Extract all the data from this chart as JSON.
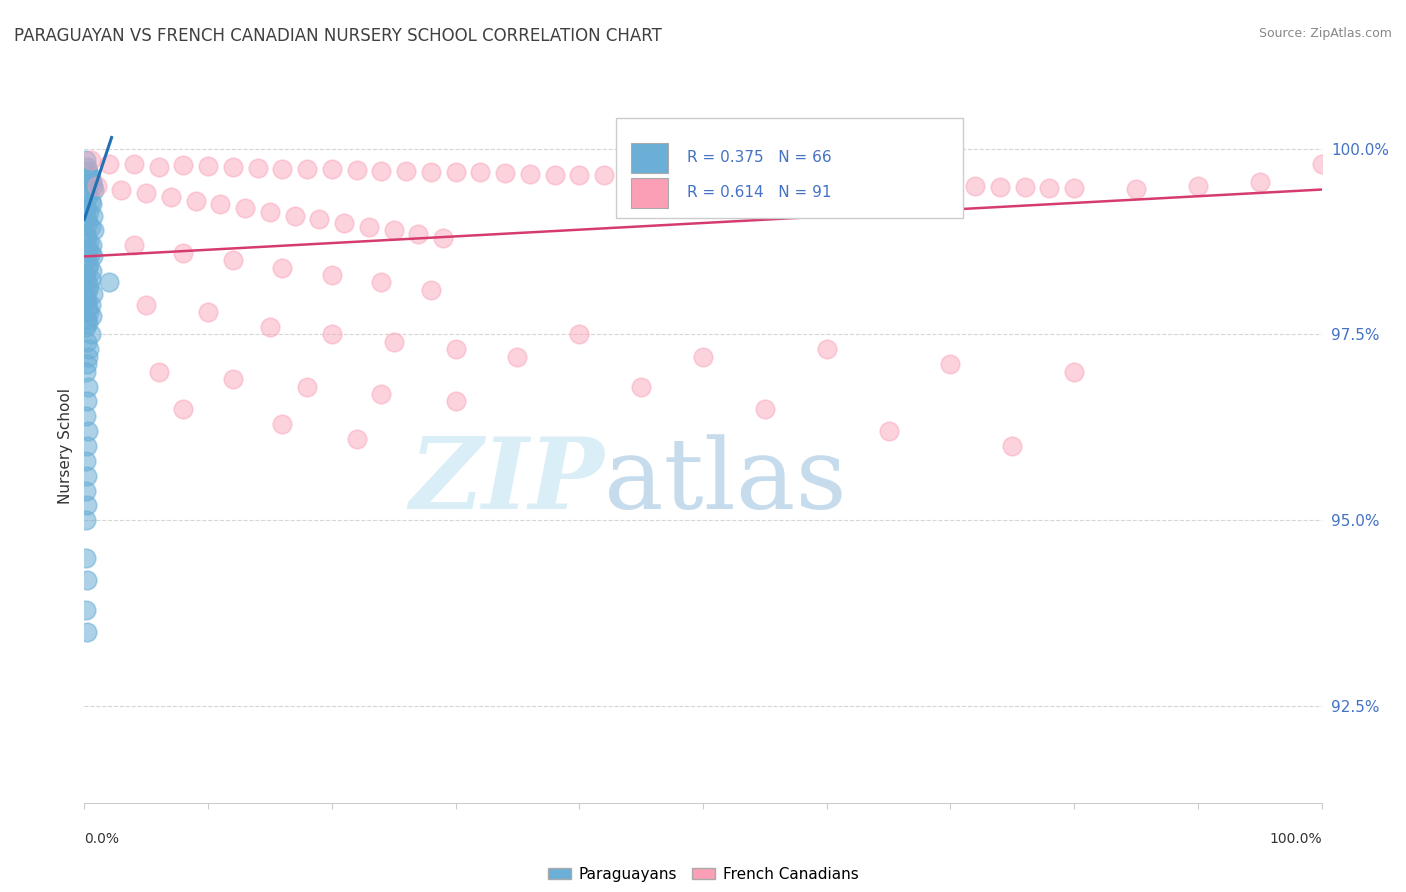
{
  "title": "PARAGUAYAN VS FRENCH CANADIAN NURSERY SCHOOL CORRELATION CHART",
  "source": "Source: ZipAtlas.com",
  "ylabel": "Nursery School",
  "legend_label1": "Paraguayans",
  "legend_label2": "French Canadians",
  "R1": 0.375,
  "N1": 66,
  "R2": 0.614,
  "N2": 91,
  "xlim": [
    0.0,
    100.0
  ],
  "ylim": [
    91.2,
    100.8
  ],
  "yticks": [
    92.5,
    95.0,
    97.5,
    100.0
  ],
  "ytick_labels": [
    "92.5%",
    "95.0%",
    "97.5%",
    "100.0%"
  ],
  "color_blue": "#6baed6",
  "color_pink": "#fa9fb5",
  "color_blue_line": "#2171b5",
  "color_pink_line": "#d63b6e",
  "background_color": "#ffffff",
  "blue_points": [
    [
      0.1,
      99.85
    ],
    [
      0.2,
      99.75
    ],
    [
      0.3,
      99.7
    ],
    [
      0.4,
      99.65
    ],
    [
      0.5,
      99.6
    ],
    [
      0.6,
      99.55
    ],
    [
      0.7,
      99.5
    ],
    [
      0.8,
      99.45
    ],
    [
      0.2,
      99.4
    ],
    [
      0.3,
      99.35
    ],
    [
      0.5,
      99.3
    ],
    [
      0.6,
      99.25
    ],
    [
      0.1,
      99.2
    ],
    [
      0.4,
      99.15
    ],
    [
      0.7,
      99.1
    ],
    [
      0.2,
      99.05
    ],
    [
      0.3,
      99.0
    ],
    [
      0.5,
      98.95
    ],
    [
      0.8,
      98.9
    ],
    [
      0.1,
      98.85
    ],
    [
      0.2,
      98.8
    ],
    [
      0.4,
      98.75
    ],
    [
      0.6,
      98.7
    ],
    [
      0.3,
      98.65
    ],
    [
      0.5,
      98.6
    ],
    [
      0.7,
      98.55
    ],
    [
      0.2,
      98.5
    ],
    [
      0.4,
      98.45
    ],
    [
      0.3,
      98.4
    ],
    [
      0.6,
      98.35
    ],
    [
      0.1,
      98.3
    ],
    [
      0.5,
      98.25
    ],
    [
      0.2,
      98.2
    ],
    [
      0.4,
      98.15
    ],
    [
      0.3,
      98.1
    ],
    [
      0.7,
      98.05
    ],
    [
      0.1,
      98.0
    ],
    [
      0.2,
      97.95
    ],
    [
      0.5,
      97.9
    ],
    [
      0.3,
      97.85
    ],
    [
      0.4,
      97.8
    ],
    [
      0.6,
      97.75
    ],
    [
      0.2,
      97.7
    ],
    [
      0.3,
      97.65
    ],
    [
      0.1,
      97.6
    ],
    [
      0.5,
      97.5
    ],
    [
      0.2,
      97.4
    ],
    [
      0.4,
      97.3
    ],
    [
      0.3,
      97.2
    ],
    [
      0.2,
      97.1
    ],
    [
      0.1,
      97.0
    ],
    [
      0.3,
      96.8
    ],
    [
      0.2,
      96.6
    ],
    [
      0.1,
      96.4
    ],
    [
      0.3,
      96.2
    ],
    [
      0.2,
      96.0
    ],
    [
      0.1,
      95.8
    ],
    [
      0.2,
      95.6
    ],
    [
      0.1,
      95.4
    ],
    [
      0.2,
      95.2
    ],
    [
      0.1,
      95.0
    ],
    [
      0.1,
      94.5
    ],
    [
      0.2,
      94.2
    ],
    [
      0.1,
      93.8
    ],
    [
      0.2,
      93.5
    ],
    [
      2.0,
      98.2
    ]
  ],
  "pink_points": [
    [
      0.5,
      99.85
    ],
    [
      2.0,
      99.8
    ],
    [
      4.0,
      99.8
    ],
    [
      6.0,
      99.75
    ],
    [
      8.0,
      99.78
    ],
    [
      10.0,
      99.77
    ],
    [
      12.0,
      99.75
    ],
    [
      14.0,
      99.74
    ],
    [
      16.0,
      99.73
    ],
    [
      18.0,
      99.72
    ],
    [
      20.0,
      99.72
    ],
    [
      22.0,
      99.71
    ],
    [
      24.0,
      99.7
    ],
    [
      26.0,
      99.7
    ],
    [
      28.0,
      99.69
    ],
    [
      30.0,
      99.68
    ],
    [
      32.0,
      99.68
    ],
    [
      34.0,
      99.67
    ],
    [
      36.0,
      99.66
    ],
    [
      38.0,
      99.65
    ],
    [
      40.0,
      99.65
    ],
    [
      42.0,
      99.64
    ],
    [
      44.0,
      99.63
    ],
    [
      46.0,
      99.62
    ],
    [
      48.0,
      99.61
    ],
    [
      50.0,
      99.6
    ],
    [
      52.0,
      99.6
    ],
    [
      54.0,
      99.59
    ],
    [
      56.0,
      99.58
    ],
    [
      58.0,
      99.57
    ],
    [
      60.0,
      99.56
    ],
    [
      62.0,
      99.55
    ],
    [
      64.0,
      99.54
    ],
    [
      66.0,
      99.53
    ],
    [
      68.0,
      99.52
    ],
    [
      70.0,
      99.51
    ],
    [
      72.0,
      99.5
    ],
    [
      74.0,
      99.49
    ],
    [
      76.0,
      99.48
    ],
    [
      78.0,
      99.47
    ],
    [
      80.0,
      99.47
    ],
    [
      85.0,
      99.46
    ],
    [
      90.0,
      99.5
    ],
    [
      95.0,
      99.55
    ],
    [
      100.0,
      99.8
    ],
    [
      1.0,
      99.5
    ],
    [
      3.0,
      99.45
    ],
    [
      5.0,
      99.4
    ],
    [
      7.0,
      99.35
    ],
    [
      9.0,
      99.3
    ],
    [
      11.0,
      99.25
    ],
    [
      13.0,
      99.2
    ],
    [
      15.0,
      99.15
    ],
    [
      17.0,
      99.1
    ],
    [
      19.0,
      99.05
    ],
    [
      21.0,
      99.0
    ],
    [
      23.0,
      98.95
    ],
    [
      25.0,
      98.9
    ],
    [
      27.0,
      98.85
    ],
    [
      29.0,
      98.8
    ],
    [
      4.0,
      98.7
    ],
    [
      8.0,
      98.6
    ],
    [
      12.0,
      98.5
    ],
    [
      16.0,
      98.4
    ],
    [
      20.0,
      98.3
    ],
    [
      24.0,
      98.2
    ],
    [
      28.0,
      98.1
    ],
    [
      5.0,
      97.9
    ],
    [
      10.0,
      97.8
    ],
    [
      15.0,
      97.6
    ],
    [
      20.0,
      97.5
    ],
    [
      25.0,
      97.4
    ],
    [
      30.0,
      97.3
    ],
    [
      35.0,
      97.2
    ],
    [
      6.0,
      97.0
    ],
    [
      12.0,
      96.9
    ],
    [
      18.0,
      96.8
    ],
    [
      24.0,
      96.7
    ],
    [
      30.0,
      96.6
    ],
    [
      8.0,
      96.5
    ],
    [
      16.0,
      96.3
    ],
    [
      22.0,
      96.1
    ],
    [
      40.0,
      97.5
    ],
    [
      50.0,
      97.2
    ],
    [
      60.0,
      97.3
    ],
    [
      70.0,
      97.1
    ],
    [
      80.0,
      97.0
    ],
    [
      45.0,
      96.8
    ],
    [
      55.0,
      96.5
    ],
    [
      65.0,
      96.2
    ],
    [
      75.0,
      96.0
    ]
  ],
  "blue_line": [
    [
      0.0,
      99.05
    ],
    [
      2.2,
      100.15
    ]
  ],
  "pink_line": [
    [
      0.0,
      98.55
    ],
    [
      100.0,
      99.45
    ]
  ]
}
